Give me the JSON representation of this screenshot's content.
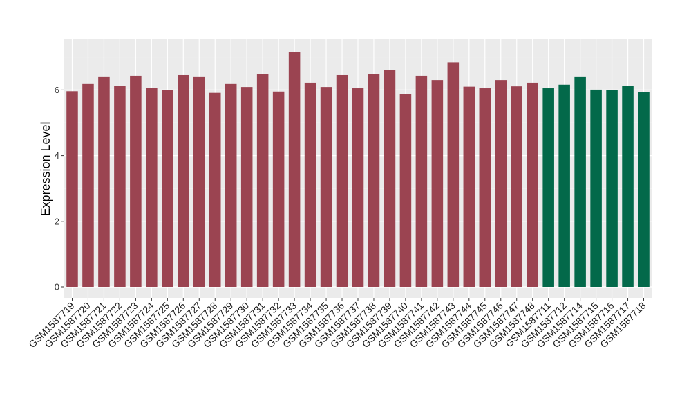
{
  "chart_data": {
    "type": "bar",
    "title": "",
    "xlabel": "",
    "ylabel": "Expression Level",
    "ylim": [
      0,
      7.4
    ],
    "yticks": [
      0,
      2,
      4,
      6
    ],
    "grid": true,
    "background": "#EBEBEB",
    "categories": [
      "GSM1587719",
      "GSM1587720",
      "GSM1587721",
      "GSM1587722",
      "GSM1587723",
      "GSM1587724",
      "GSM1587725",
      "GSM1587726",
      "GSM1587727",
      "GSM1587728",
      "GSM1587729",
      "GSM1587730",
      "GSM1587731",
      "GSM1587732",
      "GSM1587733",
      "GSM1587734",
      "GSM1587735",
      "GSM1587736",
      "GSM1587737",
      "GSM1587738",
      "GSM1587739",
      "GSM1587740",
      "GSM1587741",
      "GSM1587742",
      "GSM1587743",
      "GSM1587744",
      "GSM1587745",
      "GSM1587746",
      "GSM1587747",
      "GSM1587748",
      "GSM1587711",
      "GSM1587712",
      "GSM1587714",
      "GSM1587715",
      "GSM1587716",
      "GSM1587717",
      "GSM1587718"
    ],
    "values": [
      5.96,
      6.18,
      6.41,
      6.13,
      6.43,
      6.07,
      5.99,
      6.45,
      6.41,
      5.91,
      6.18,
      6.09,
      6.49,
      5.95,
      7.16,
      6.22,
      6.09,
      6.45,
      6.05,
      6.49,
      6.6,
      5.87,
      6.43,
      6.3,
      6.84,
      6.1,
      6.05,
      6.3,
      6.11,
      6.22,
      6.05,
      6.16,
      6.41,
      6.01,
      5.99,
      6.13,
      5.94
    ],
    "colors": [
      "#9B4451",
      "#9B4451",
      "#9B4451",
      "#9B4451",
      "#9B4451",
      "#9B4451",
      "#9B4451",
      "#9B4451",
      "#9B4451",
      "#9B4451",
      "#9B4451",
      "#9B4451",
      "#9B4451",
      "#9B4451",
      "#9B4451",
      "#9B4451",
      "#9B4451",
      "#9B4451",
      "#9B4451",
      "#9B4451",
      "#9B4451",
      "#9B4451",
      "#9B4451",
      "#9B4451",
      "#9B4451",
      "#9B4451",
      "#9B4451",
      "#9B4451",
      "#9B4451",
      "#9B4451",
      "#03694A",
      "#03694A",
      "#03694A",
      "#03694A",
      "#03694A",
      "#03694A",
      "#03694A"
    ]
  }
}
